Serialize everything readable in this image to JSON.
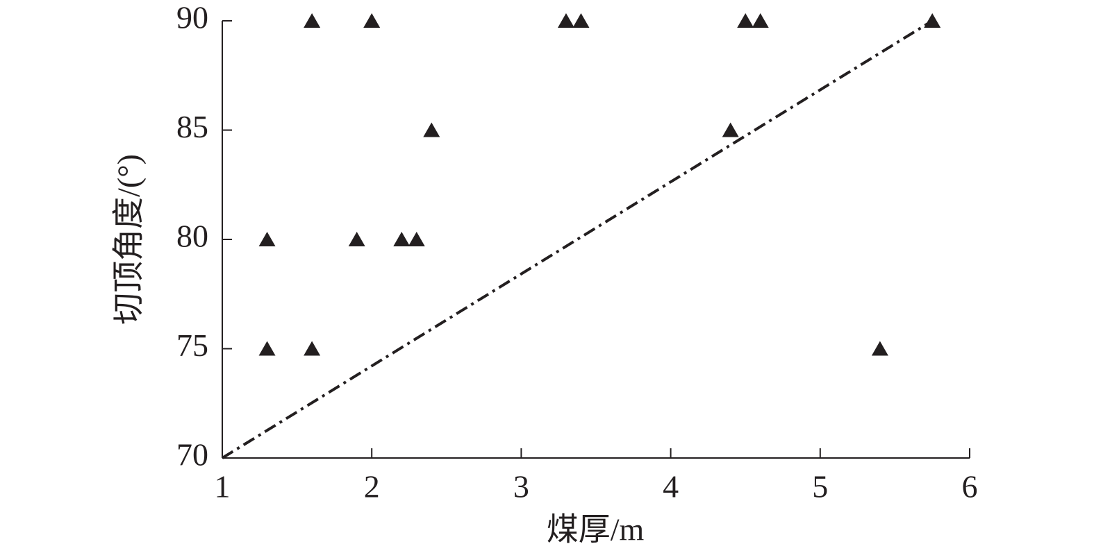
{
  "chart_data": {
    "type": "scatter",
    "xlabel": "煤厚/m",
    "ylabel": "切顶角度/(°)",
    "xlim": [
      1,
      6
    ],
    "xticks": [
      1,
      2,
      3,
      4,
      5,
      6
    ],
    "ylim": [
      70,
      90
    ],
    "yticks": [
      70,
      75,
      80,
      85,
      90
    ],
    "marker": "triangle",
    "color": "#231f20",
    "x": [
      1.6,
      2.0,
      3.3,
      3.4,
      4.5,
      4.6,
      5.75,
      2.4,
      4.4,
      1.3,
      1.9,
      2.2,
      2.3,
      1.3,
      1.6,
      5.4
    ],
    "values": [
      90,
      90,
      90,
      90,
      90,
      90,
      90,
      85,
      85,
      80,
      80,
      80,
      80,
      75,
      75,
      75
    ],
    "trend_line": {
      "x": [
        1,
        5.75
      ],
      "values": [
        70,
        90
      ],
      "style": "dashdot",
      "color": "#231f20"
    }
  }
}
